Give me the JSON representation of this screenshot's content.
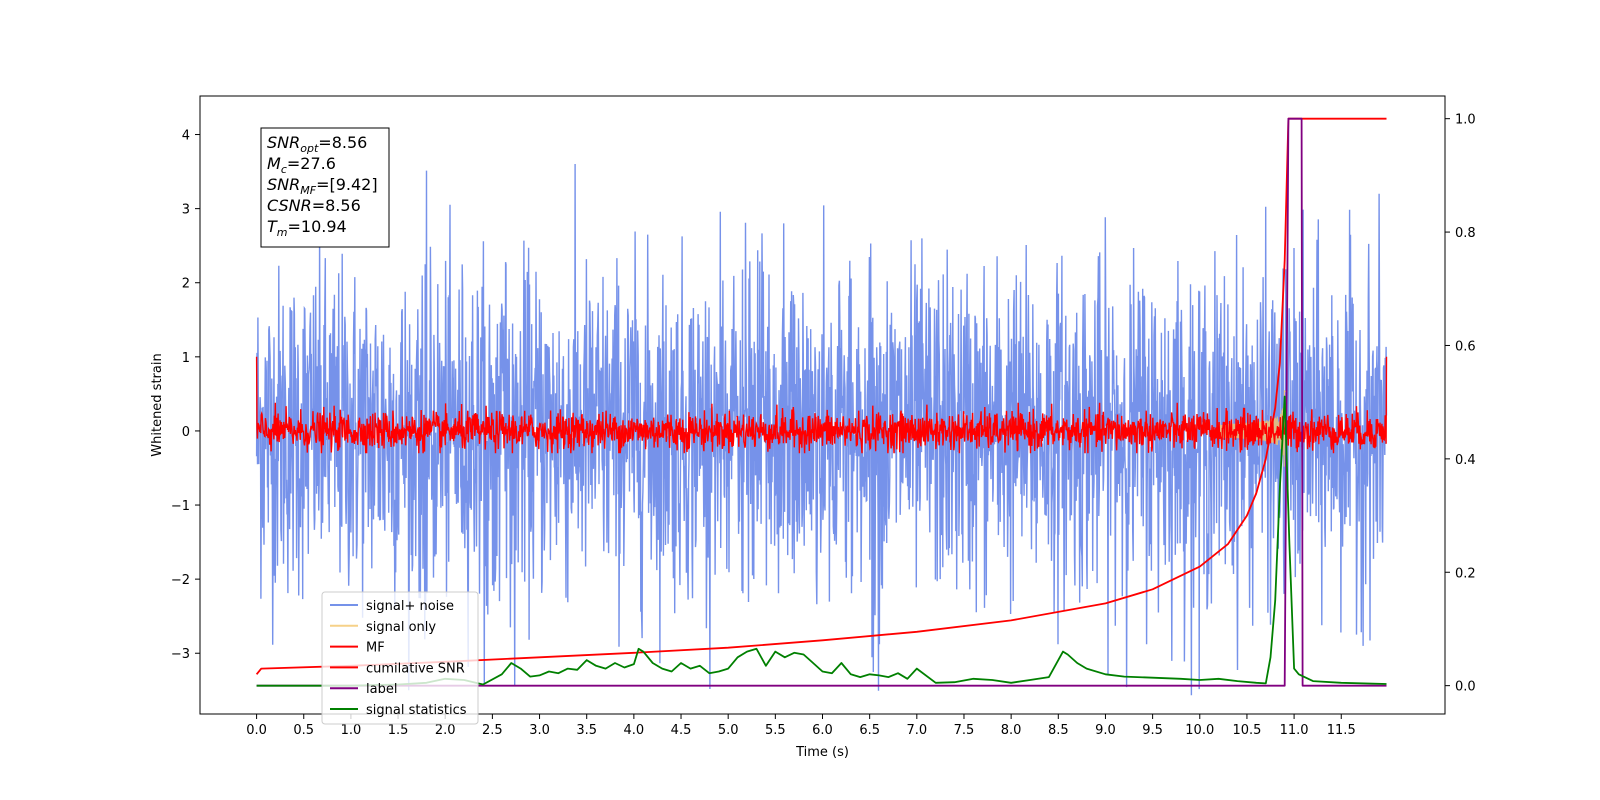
{
  "chart_data": {
    "type": "line",
    "xlabel": "Time (s)",
    "ylabel": "Whitened strain",
    "xlim": [
      -0.6,
      12.6
    ],
    "ylim": [
      -3.82,
      4.52
    ],
    "ylim_right": [
      -0.05,
      1.04
    ],
    "x_ticks": [
      0.0,
      0.5,
      1.0,
      1.5,
      2.0,
      2.5,
      3.0,
      3.5,
      4.0,
      4.5,
      5.0,
      5.5,
      6.0,
      6.5,
      7.0,
      7.5,
      8.0,
      8.5,
      9.0,
      9.5,
      10.0,
      10.5,
      11.0,
      11.5
    ],
    "x_tick_labels": [
      "0.0",
      "0.5",
      "1.0",
      "1.5",
      "2.0",
      "2.5",
      "3.0",
      "3.5",
      "4.0",
      "4.5",
      "5.0",
      "5.5",
      "6.0",
      "6.5",
      "7.0",
      "7.5",
      "8.0",
      "8.5",
      "9.0",
      "9.5",
      "10.0",
      "10.5",
      "11.0",
      "11.5"
    ],
    "y_ticks": [
      -3,
      -2,
      -1,
      0,
      1,
      2,
      3,
      4
    ],
    "y_tick_labels": [
      "−3",
      "−2",
      "−1",
      "0",
      "1",
      "2",
      "3",
      "4"
    ],
    "y2_ticks": [
      0.0,
      0.2,
      0.4,
      0.6,
      0.8,
      1.0
    ],
    "y2_tick_labels": [
      "0.0",
      "0.2",
      "0.4",
      "0.6",
      "0.8",
      "1.0"
    ],
    "annotation": [
      {
        "sym": "SNR",
        "sub": "opt",
        "value": "=8.56"
      },
      {
        "sym": "M",
        "sub": "c",
        "value": "=27.6"
      },
      {
        "sym": "SNR",
        "sub": "MF",
        "value": "=[9.42]"
      },
      {
        "sym": "CSNR",
        "sub": "",
        "value": "=8.56"
      },
      {
        "sym": "T",
        "sub": "m",
        "value": "=10.94"
      }
    ],
    "legend_position": "lower-left",
    "series": [
      {
        "name": "signal+ noise",
        "color": "#6a89e8",
        "axis": "left",
        "description_kind": "noise",
        "amplitude": 1.1,
        "x_range": [
          0,
          11.98
        ]
      },
      {
        "name": "signal only",
        "color": "#f5c66b",
        "axis": "left",
        "description_kind": "chirp",
        "merger_time": 10.9
      },
      {
        "name": "MF",
        "color": "#ff0000",
        "axis": "left",
        "description_kind": "noise",
        "amplitude": 0.13,
        "x_range": [
          0,
          11.98
        ]
      },
      {
        "name": "cumilative SNR",
        "color": "#ff0000",
        "axis": "right",
        "x": [
          0,
          0.05,
          1,
          2,
          3,
          4,
          5,
          6,
          7,
          8,
          9,
          9.5,
          10,
          10.3,
          10.5,
          10.6,
          10.7,
          10.8,
          10.85,
          10.9,
          10.94,
          11.98
        ],
        "y": [
          0.02,
          0.03,
          0.035,
          0.042,
          0.05,
          0.058,
          0.067,
          0.08,
          0.095,
          0.115,
          0.145,
          0.17,
          0.21,
          0.25,
          0.3,
          0.34,
          0.4,
          0.49,
          0.57,
          0.75,
          1.0,
          1.0
        ]
      },
      {
        "name": "label",
        "color": "#800080",
        "axis": "right",
        "x": [
          0,
          10.9,
          10.94,
          10.95,
          11.08,
          11.09,
          11.98
        ],
        "y": [
          0,
          0,
          1,
          1,
          1,
          0,
          0
        ]
      },
      {
        "name": "signal statistics",
        "color": "#008000",
        "axis": "right",
        "x": [
          0,
          0.5,
          1,
          1.5,
          1.8,
          2.0,
          2.2,
          2.4,
          2.6,
          2.7,
          2.8,
          2.9,
          3.0,
          3.1,
          3.2,
          3.3,
          3.4,
          3.5,
          3.6,
          3.7,
          3.8,
          3.9,
          4.0,
          4.05,
          4.1,
          4.2,
          4.3,
          4.4,
          4.5,
          4.6,
          4.7,
          4.8,
          4.9,
          5.0,
          5.1,
          5.2,
          5.3,
          5.4,
          5.5,
          5.6,
          5.7,
          5.8,
          5.9,
          6.0,
          6.1,
          6.2,
          6.3,
          6.4,
          6.5,
          6.6,
          6.7,
          6.8,
          6.9,
          7.0,
          7.2,
          7.4,
          7.6,
          7.8,
          8.0,
          8.2,
          8.4,
          8.55,
          8.6,
          8.7,
          8.8,
          9.0,
          9.2,
          9.5,
          9.8,
          10.0,
          10.2,
          10.4,
          10.6,
          10.7,
          10.75,
          10.8,
          10.85,
          10.9,
          10.95,
          11.0,
          11.05,
          11.2,
          11.5,
          11.98
        ],
        "y": [
          0.0,
          0.0,
          0.0,
          0.002,
          0.005,
          0.012,
          0.01,
          0.002,
          0.02,
          0.04,
          0.03,
          0.016,
          0.018,
          0.025,
          0.022,
          0.03,
          0.028,
          0.045,
          0.035,
          0.03,
          0.04,
          0.032,
          0.038,
          0.065,
          0.06,
          0.04,
          0.03,
          0.025,
          0.04,
          0.03,
          0.035,
          0.022,
          0.025,
          0.03,
          0.05,
          0.06,
          0.065,
          0.035,
          0.06,
          0.05,
          0.058,
          0.055,
          0.04,
          0.025,
          0.022,
          0.04,
          0.02,
          0.015,
          0.02,
          0.018,
          0.015,
          0.022,
          0.012,
          0.03,
          0.005,
          0.006,
          0.012,
          0.01,
          0.005,
          0.01,
          0.015,
          0.06,
          0.055,
          0.04,
          0.03,
          0.02,
          0.016,
          0.014,
          0.012,
          0.01,
          0.012,
          0.008,
          0.005,
          0.004,
          0.05,
          0.15,
          0.35,
          0.51,
          0.25,
          0.03,
          0.02,
          0.008,
          0.005,
          0.003
        ]
      }
    ]
  }
}
